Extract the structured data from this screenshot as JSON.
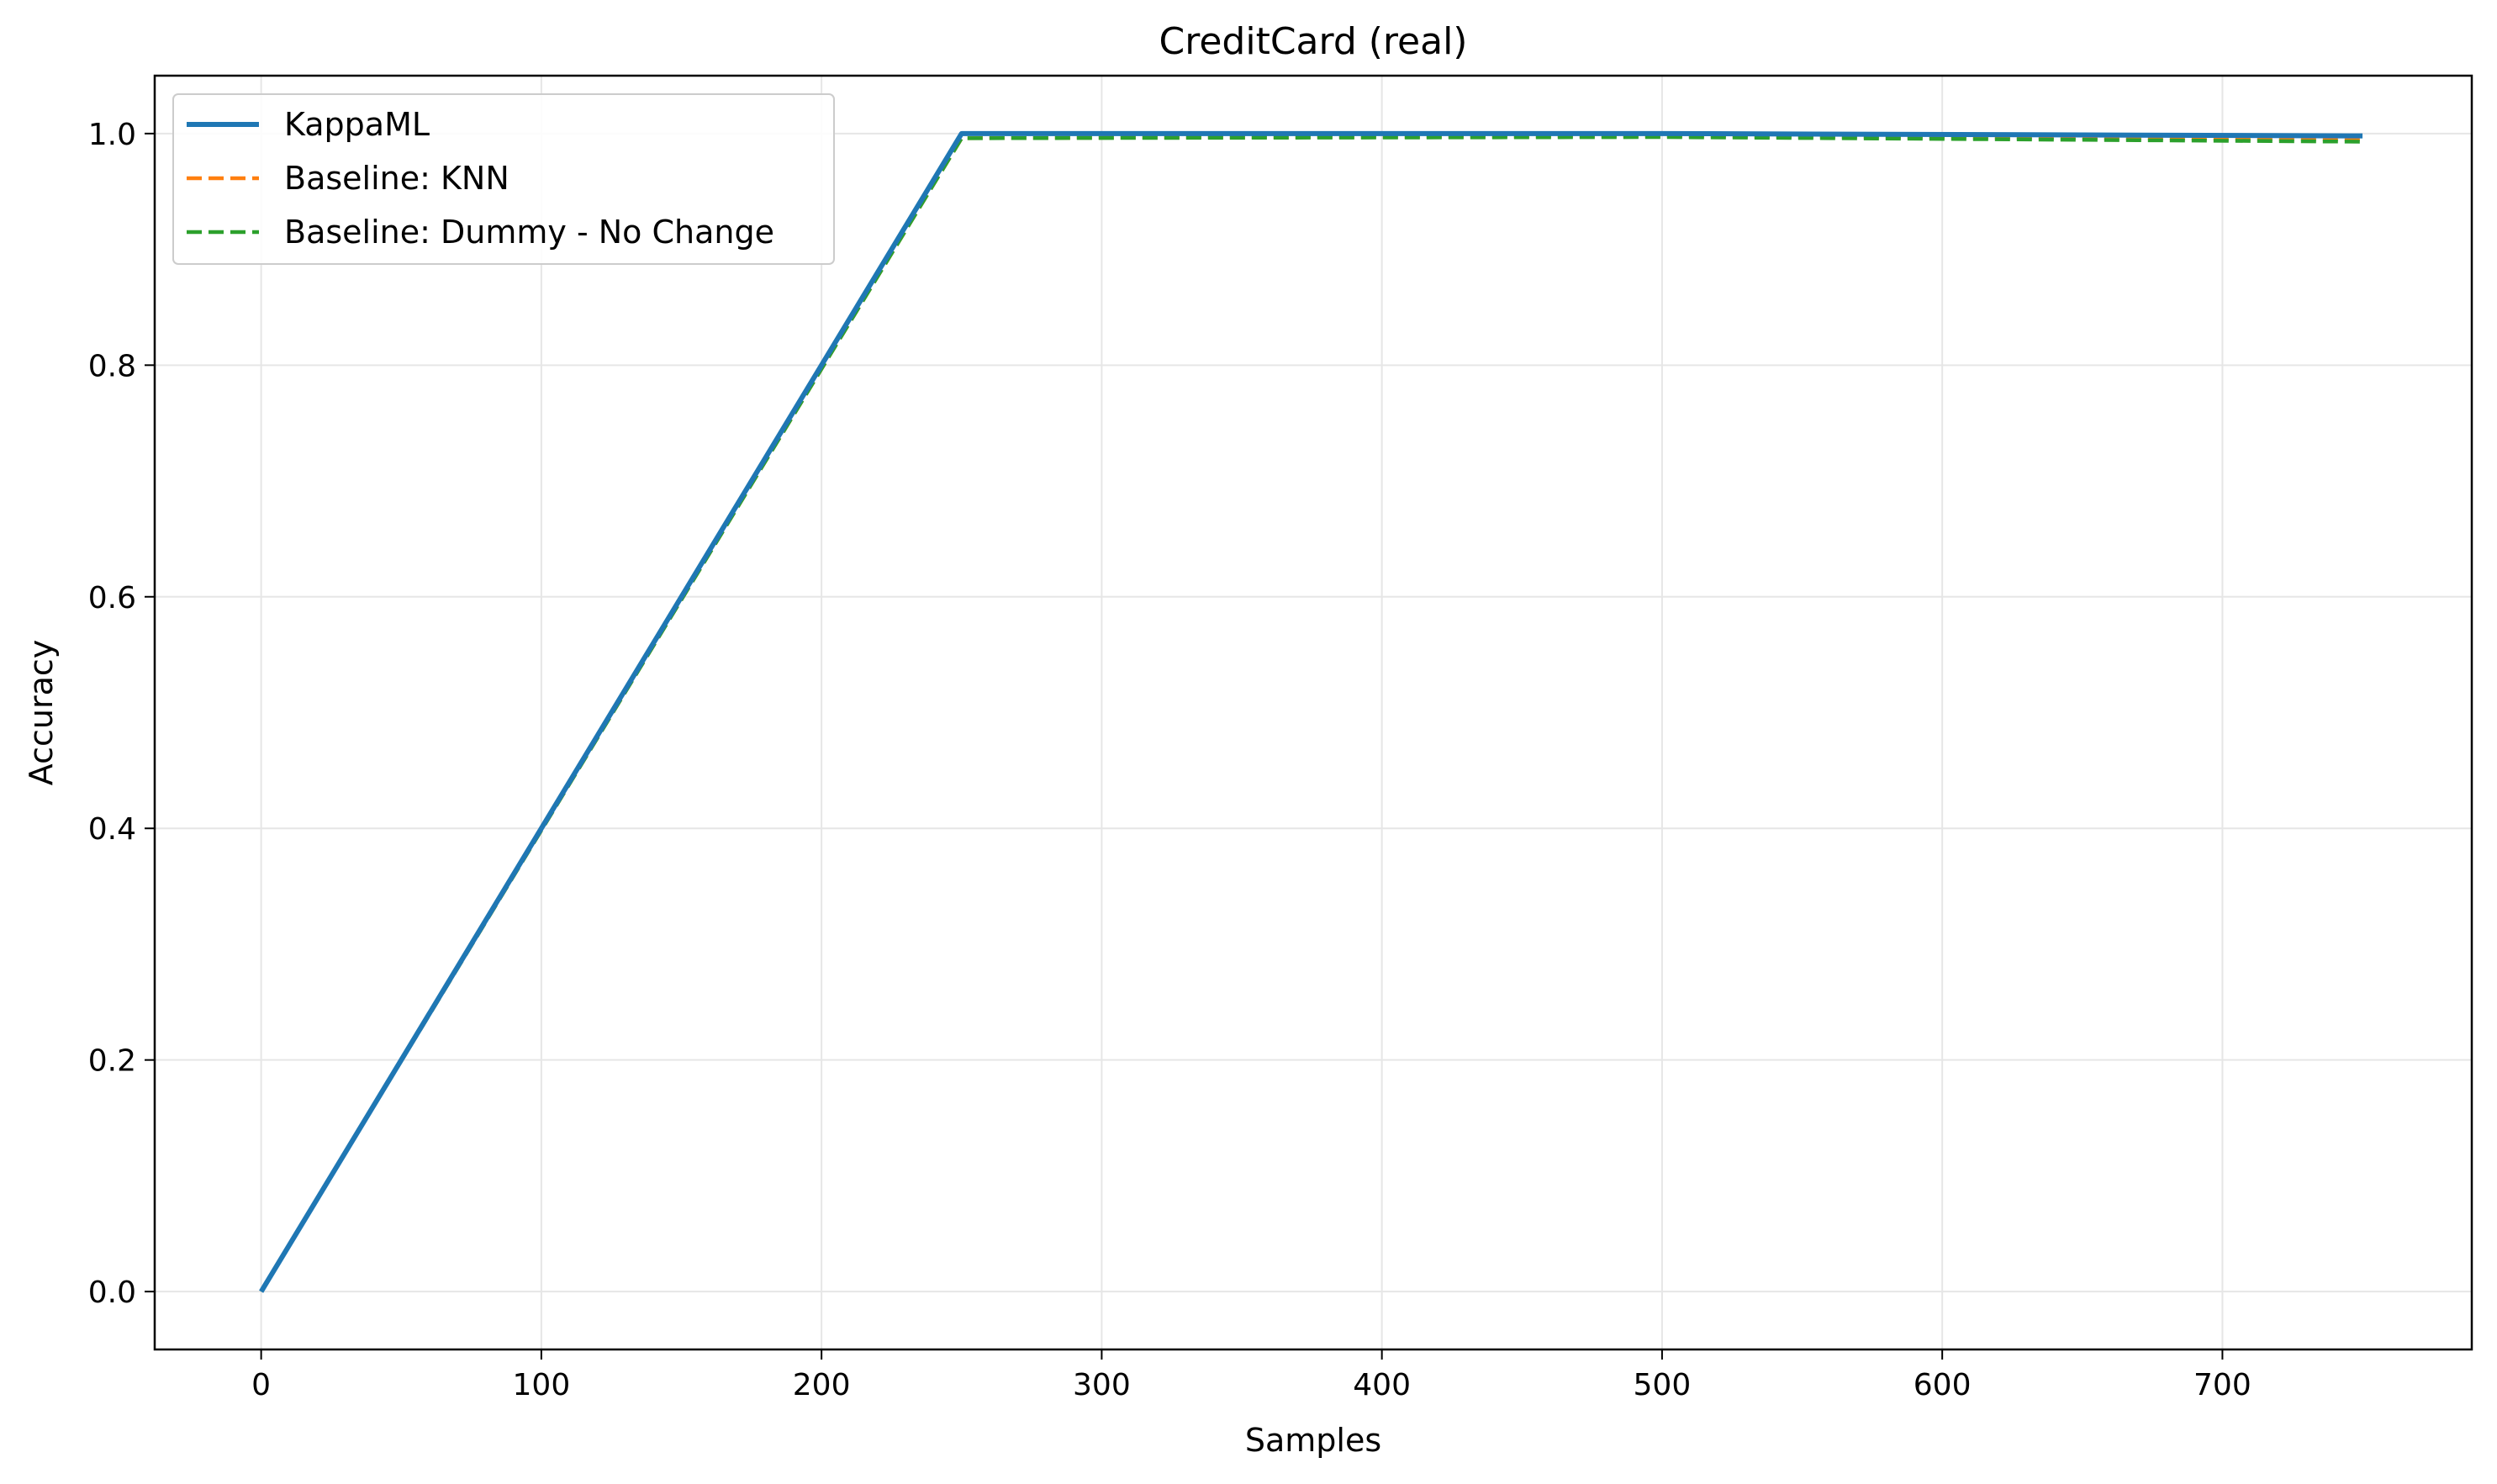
{
  "chart_data": {
    "type": "line",
    "title": "CreditCard (real)",
    "xlabel": "Samples",
    "ylabel": "Accuracy",
    "xlim": [
      -38,
      789
    ],
    "ylim": [
      -0.05,
      1.05
    ],
    "xticks": [
      0,
      100,
      200,
      300,
      400,
      500,
      600,
      700
    ],
    "xtick_labels": [
      "0",
      "100",
      "200",
      "300",
      "400",
      "500",
      "600",
      "700"
    ],
    "yticks": [
      0.0,
      0.2,
      0.4,
      0.6,
      0.8,
      1.0
    ],
    "ytick_labels": [
      "0.0",
      "0.2",
      "0.4",
      "0.6",
      "0.8",
      "1.0"
    ],
    "grid": true,
    "legend_position": "top-left",
    "series": [
      {
        "name": "KappaML",
        "color": "#1f77b4",
        "style": "solid",
        "x": [
          0,
          250,
          500,
          750
        ],
        "y": [
          0.0,
          1.0,
          1.0,
          0.998
        ]
      },
      {
        "name": "Baseline: KNN",
        "color": "#ff7f0e",
        "style": "dashed",
        "x": [
          0,
          250,
          500,
          750
        ],
        "y": [
          0.0,
          0.996,
          0.998,
          0.995
        ]
      },
      {
        "name": "Baseline: Dummy - No Change",
        "color": "#2ca02c",
        "style": "dashed",
        "x": [
          0,
          250,
          500,
          750
        ],
        "y": [
          0.0,
          0.996,
          0.997,
          0.993
        ]
      }
    ]
  }
}
